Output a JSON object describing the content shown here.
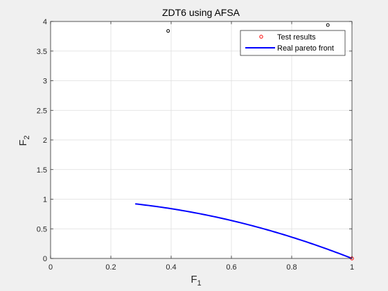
{
  "chart_data": {
    "type": "scatter",
    "title": "ZDT6 using AFSA",
    "xlabel": "F",
    "xlabel_sub": "1",
    "ylabel": "F",
    "ylabel_sub": "2",
    "xlim": [
      0,
      1
    ],
    "ylim": [
      0,
      4
    ],
    "xticks": [
      0,
      0.2,
      0.4,
      0.6,
      0.8,
      1
    ],
    "xtick_labels": [
      "0",
      "0.2",
      "0.4",
      "0.6",
      "0.8",
      "1"
    ],
    "yticks": [
      0,
      0.5,
      1,
      1.5,
      2,
      2.5,
      3,
      3.5,
      4
    ],
    "ytick_labels": [
      "0",
      "0.5",
      "1",
      "1.5",
      "2",
      "2.5",
      "3",
      "3.5",
      "4"
    ],
    "grid": true,
    "legend_position": "top-right",
    "series": [
      {
        "name": "Test results",
        "kind": "scatter",
        "marker": "circle",
        "color": "#ff0000",
        "points": [
          {
            "x": 1.0,
            "y": 0.0
          }
        ]
      },
      {
        "name": "Real pareto front",
        "kind": "line",
        "color": "#0000ff",
        "function": "1 - x^2",
        "x_range": [
          0.2808,
          1.0
        ]
      }
    ],
    "extra_points": {
      "marker": "circle",
      "color": "#000000",
      "points": [
        {
          "x": 0.39,
          "y": 3.84
        },
        {
          "x": 0.92,
          "y": 3.94
        }
      ]
    }
  }
}
